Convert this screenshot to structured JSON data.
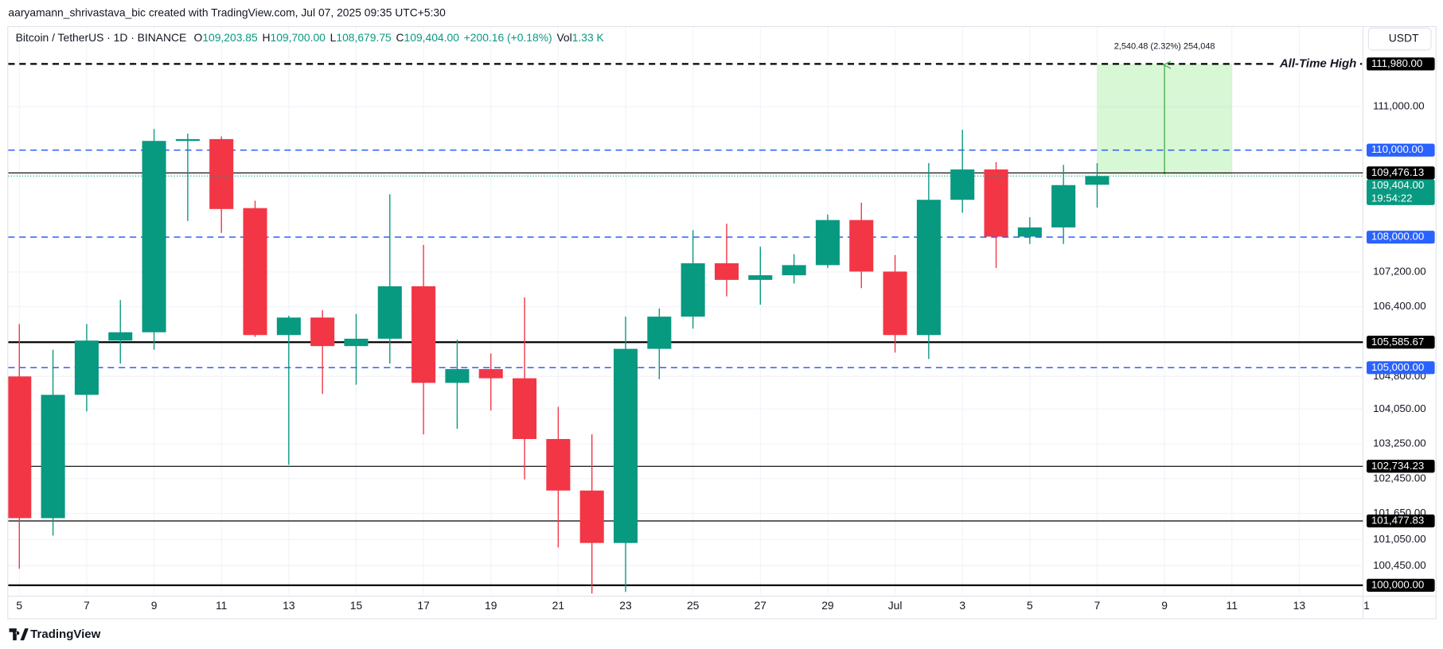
{
  "header": {
    "credit": "aaryamann_shrivastava_bic created with TradingView.com, Jul 07, 2025 09:35 UTC+5:30"
  },
  "chart_data": {
    "type": "candlestick",
    "symbol": "Bitcoin / TetherUS · 1D · BINANCE",
    "legend": [
      {
        "key": "O",
        "value": "109,203.85"
      },
      {
        "key": "H",
        "value": "109,700.00"
      },
      {
        "key": "L",
        "value": "108,679.75"
      },
      {
        "key": "C",
        "value": "109,404.00"
      }
    ],
    "change": "+200.16 (+0.18%)",
    "volume": {
      "key": "Vol",
      "value": "1.33 K"
    },
    "currency": "USDT",
    "categories": [
      "5",
      null,
      "7",
      null,
      "9",
      null,
      "11",
      null,
      "13",
      null,
      "15",
      null,
      "17",
      null,
      "19",
      null,
      "21",
      null,
      "23",
      null,
      "25",
      null,
      "27",
      null,
      "29",
      null,
      "Jul",
      null,
      "3",
      null,
      "5",
      null,
      "7",
      null,
      "9",
      null,
      "11",
      null,
      "13",
      null,
      "1"
    ],
    "open": [
      104799,
      101543,
      104376,
      105623,
      105814,
      110211,
      110253,
      108667,
      105750,
      106152,
      105496,
      105666,
      106871,
      104651,
      104968,
      104757,
      103361,
      102177,
      100972,
      105433,
      106173,
      107399,
      107018,
      107124,
      107357,
      108393,
      107209,
      105750,
      108858,
      109555,
      108012,
      108223,
      109203.85,
      null,
      null,
      null,
      null,
      null,
      null,
      null,
      null
    ],
    "high": [
      106004,
      105412,
      106004,
      106553,
      110485,
      110380,
      110316,
      108837,
      106194,
      106321,
      106236,
      108985,
      107822,
      105644,
      105327,
      106617,
      104101,
      103467,
      106173,
      106363,
      108160,
      108308,
      107780,
      107610,
      108519,
      108794,
      107589,
      109703,
      110464,
      109724,
      108456,
      109661,
      109700,
      null,
      null,
      null,
      null,
      null,
      null,
      null,
      null
    ],
    "low": [
      100381,
      101142,
      103995,
      105095,
      105412,
      108371,
      108097,
      105708,
      102769,
      104397,
      104609,
      105095,
      103467,
      103594,
      104017,
      102431,
      100867,
      99810,
      99850,
      104735,
      105898,
      106638,
      106448,
      106934,
      107293,
      106828,
      105348,
      105200,
      108562,
      107293,
      107843,
      107843,
      108679.75,
      null,
      null,
      null,
      null,
      null,
      null,
      null,
      null
    ],
    "close": [
      101543,
      104376,
      105623,
      105814,
      110211,
      110253,
      108646,
      105750,
      106152,
      105496,
      105666,
      106871,
      104651,
      104968,
      104757,
      103361,
      102177,
      100972,
      105433,
      106173,
      107399,
      107018,
      107124,
      107357,
      108393,
      107209,
      105750,
      108858,
      109555,
      108012,
      108223,
      109196,
      109404,
      null,
      null,
      null,
      null,
      null,
      null,
      null,
      null
    ],
    "up_color": "#089981",
    "down_color": "#f23645",
    "ylim": [
      99790,
      112850
    ],
    "yticks": [
      {
        "value": 111000,
        "label": "111,000.00"
      },
      {
        "value": 107200,
        "label": "107,200.00"
      },
      {
        "value": 106400,
        "label": "106,400.00"
      },
      {
        "value": 104800,
        "label": "104,800.00"
      },
      {
        "value": 104050,
        "label": "104,050.00"
      },
      {
        "value": 103250,
        "label": "103,250.00"
      },
      {
        "value": 102450,
        "label": "102,450.00"
      },
      {
        "value": 101650,
        "label": "101,650.00"
      },
      {
        "value": 101050,
        "label": "101,050.00"
      },
      {
        "value": 100450,
        "label": "100,450.00"
      }
    ],
    "grid": true,
    "levels": [
      {
        "value": 111980,
        "label": "111,980.00",
        "color": "#000000",
        "style": "dashed",
        "width": 2
      },
      {
        "value": 110000,
        "label": "110,000.00",
        "color": "#2962ff",
        "style": "dashed",
        "width": 1.3
      },
      {
        "value": 109476.13,
        "label": "109,476.13",
        "color": "#000000",
        "style": "solid",
        "width": 1
      },
      {
        "value": 108000,
        "label": "108,000.00",
        "color": "#2962ff",
        "style": "dashed",
        "width": 1.3
      },
      {
        "value": 105585.67,
        "label": "105,585.67",
        "color": "#000000",
        "style": "solid",
        "width": 2
      },
      {
        "value": 105000,
        "label": "105,000.00",
        "color": "#2962ff",
        "style": "dashed",
        "width": 1.3
      },
      {
        "value": 102734.23,
        "label": "102,734.23",
        "color": "#000000",
        "style": "solid",
        "width": 1
      },
      {
        "value": 101477.83,
        "label": "101,477.83",
        "color": "#000000",
        "style": "solid",
        "width": 1
      },
      {
        "value": 100000,
        "label": "100,000.00",
        "color": "#000000",
        "style": "solid",
        "width": 2
      }
    ],
    "current_price": {
      "value": 109404,
      "label": "109,404.00",
      "countdown": "19:54:22",
      "color": "#089981"
    },
    "annotation": {
      "text": "All-Time High",
      "value": 111980
    },
    "measure": {
      "label": "2,540.48 (2.32%) 254,048",
      "to": 111980,
      "change": 2540.48
    }
  },
  "footer": {
    "brand": "TradingView"
  }
}
